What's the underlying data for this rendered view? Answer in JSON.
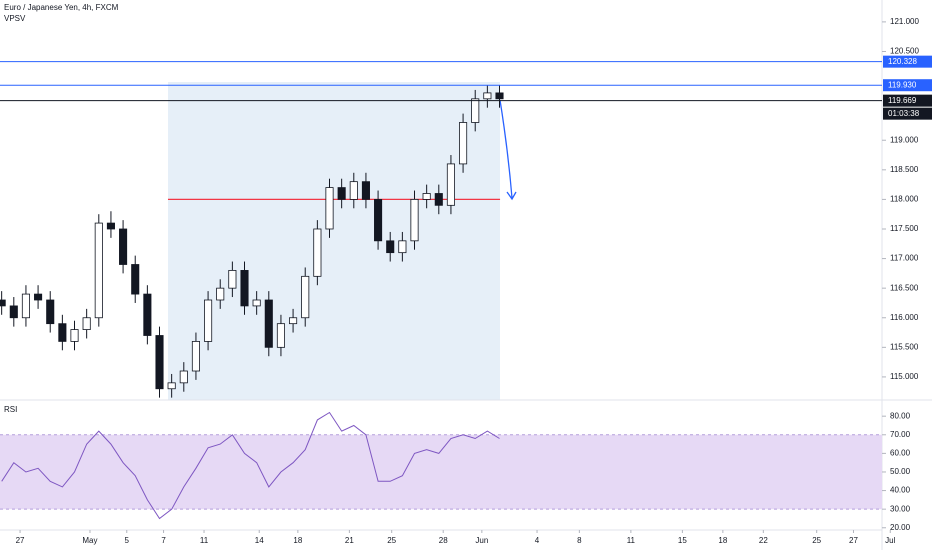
{
  "header": {
    "symbol": "Euro / Japanese Yen, 4h, FXCM",
    "indicator": "VPSV"
  },
  "chart_data": [
    {
      "type": "candlestick",
      "x": [
        -1,
        -0.34,
        0.32,
        0.98,
        1.64,
        2.3,
        2.96,
        3.62,
        4.28,
        4.94,
        5.6,
        6.26,
        6.92,
        7.58,
        8.24,
        8.9,
        9.56,
        10.22,
        10.88,
        11.54,
        12.2,
        12.86,
        13.52,
        14.18,
        14.84,
        15.5,
        16.16,
        16.82,
        17.48,
        18.14,
        18.8,
        19.46,
        20.12,
        20.78,
        21.44,
        22.1,
        22.76,
        23.42,
        24.08,
        24.74,
        25.4,
        26.06
      ],
      "open": [
        116.3,
        116.2,
        116.0,
        116.4,
        116.3,
        115.9,
        115.6,
        115.8,
        116.0,
        117.6,
        117.5,
        116.9,
        116.4,
        115.7,
        114.8,
        114.9,
        115.1,
        115.6,
        116.3,
        116.5,
        116.8,
        116.2,
        116.3,
        115.5,
        115.9,
        116.0,
        116.7,
        117.5,
        118.2,
        118.0,
        118.3,
        118.0,
        117.3,
        117.1,
        117.3,
        118.0,
        118.1,
        117.9,
        118.6,
        119.3,
        119.7,
        119.8
      ],
      "high": [
        116.45,
        116.35,
        116.55,
        116.55,
        116.45,
        116.05,
        115.95,
        116.15,
        117.75,
        117.8,
        117.65,
        117.05,
        116.55,
        115.85,
        115.05,
        115.25,
        115.75,
        116.45,
        116.65,
        116.95,
        116.95,
        116.45,
        116.45,
        116.05,
        116.15,
        116.85,
        117.65,
        118.35,
        118.35,
        118.45,
        118.45,
        118.15,
        117.45,
        117.45,
        118.15,
        118.25,
        118.25,
        118.75,
        119.45,
        119.85,
        119.93,
        119.93
      ],
      "low": [
        116.05,
        115.85,
        115.85,
        116.15,
        115.75,
        115.45,
        115.45,
        115.65,
        115.85,
        117.35,
        116.75,
        116.25,
        115.55,
        114.65,
        114.65,
        114.75,
        114.95,
        115.45,
        116.15,
        116.35,
        116.05,
        116.05,
        115.35,
        115.35,
        115.75,
        115.85,
        116.55,
        117.35,
        117.85,
        117.85,
        117.85,
        117.15,
        116.95,
        116.95,
        117.15,
        117.85,
        117.75,
        117.75,
        118.45,
        119.15,
        119.55,
        119.55
      ],
      "close": [
        116.2,
        116.0,
        116.4,
        116.3,
        115.9,
        115.6,
        115.8,
        116.0,
        117.6,
        117.5,
        116.9,
        116.4,
        115.7,
        114.8,
        114.9,
        115.1,
        115.6,
        116.3,
        116.5,
        116.8,
        116.2,
        116.3,
        115.5,
        115.9,
        116.0,
        116.7,
        117.5,
        118.2,
        118.0,
        118.3,
        118.0,
        117.3,
        117.1,
        117.3,
        118.0,
        118.1,
        117.9,
        118.6,
        119.3,
        119.7,
        119.8,
        119.7
      ],
      "xlim": [
        -1.09,
        46.85
      ],
      "ylim": [
        114.61,
        121.37
      ],
      "yticks": [
        {
          "value": 121,
          "label": "121.000"
        },
        {
          "value": 120.5,
          "label": "120.500"
        },
        {
          "value": 119,
          "label": "119.000"
        },
        {
          "value": 118.5,
          "label": "118.500"
        },
        {
          "value": 118,
          "label": "118.000"
        },
        {
          "value": 117.5,
          "label": "117.500"
        },
        {
          "value": 117,
          "label": "117.000"
        },
        {
          "value": 116.5,
          "label": "116.500"
        },
        {
          "value": 116,
          "label": "116.000"
        },
        {
          "value": 115.5,
          "label": "115.500"
        },
        {
          "value": 115,
          "label": "115.000"
        }
      ],
      "levels": [
        {
          "value": 120.328,
          "label": "120.328",
          "color": "#2962ff"
        },
        {
          "value": 119.93,
          "label": "119.930",
          "color": "#2962ff"
        },
        {
          "value": 119.669,
          "label": "119.669",
          "color": "#131722"
        }
      ],
      "countdown": "01:03:38",
      "poc": {
        "value": 118,
        "from": 8.04,
        "to": 26.09,
        "color": "#f23645"
      }
    },
    {
      "type": "line",
      "title": "RSI",
      "color": "#7e57c2",
      "values": [
        45,
        55,
        50,
        52,
        45,
        42,
        50,
        65,
        72,
        65,
        55,
        48,
        35,
        25,
        30,
        42,
        52,
        63,
        65,
        70,
        60,
        55,
        42,
        50,
        55,
        62,
        78,
        82,
        72,
        75,
        70,
        45,
        45,
        48,
        60,
        62,
        60,
        68,
        70,
        68,
        72,
        68
      ],
      "xlim": [
        -1.09,
        46.85
      ],
      "xticks": [
        {
          "value": 0,
          "label": "27"
        },
        {
          "value": 3.8,
          "label": "May"
        },
        {
          "value": 5.8,
          "label": "5"
        },
        {
          "value": 7.8,
          "label": "7"
        },
        {
          "value": 10,
          "label": "11"
        },
        {
          "value": 13,
          "label": "14"
        },
        {
          "value": 15.1,
          "label": "18"
        },
        {
          "value": 17.9,
          "label": "21"
        },
        {
          "value": 20.2,
          "label": "25"
        },
        {
          "value": 23,
          "label": "28"
        },
        {
          "value": 25.1,
          "label": "Jun"
        },
        {
          "value": 28.1,
          "label": "4"
        },
        {
          "value": 30.4,
          "label": "8"
        },
        {
          "value": 33.2,
          "label": "11"
        },
        {
          "value": 36,
          "label": "15"
        },
        {
          "value": 38.2,
          "label": "18"
        },
        {
          "value": 40.4,
          "label": "22"
        },
        {
          "value": 43.3,
          "label": "25"
        },
        {
          "value": 45.3,
          "label": "27"
        },
        {
          "value": 47.3,
          "label": "Jul"
        }
      ],
      "ylim": [
        18.8,
        88.7
      ],
      "yticks": [
        {
          "value": 80,
          "label": "80.00"
        },
        {
          "value": 70,
          "label": "70.00"
        },
        {
          "value": 60,
          "label": "60.00"
        },
        {
          "value": 50,
          "label": "50.00"
        },
        {
          "value": 40,
          "label": "40.00"
        },
        {
          "value": 30,
          "label": "30.00"
        },
        {
          "value": 20,
          "label": "20.00"
        }
      ],
      "band": [
        30,
        70
      ]
    }
  ]
}
